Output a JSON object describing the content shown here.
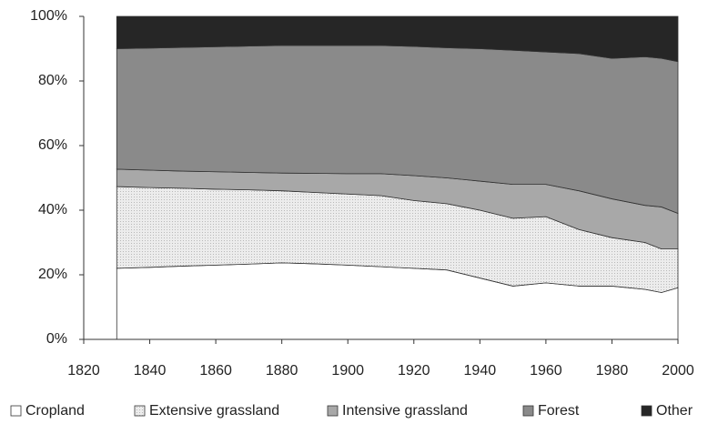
{
  "chart_data": {
    "type": "stacked-area",
    "x": [
      1830,
      1840,
      1850,
      1860,
      1870,
      1880,
      1890,
      1900,
      1910,
      1920,
      1930,
      1940,
      1950,
      1960,
      1970,
      1980,
      1990,
      1995,
      2000
    ],
    "series": [
      {
        "name": "Cropland",
        "color": "#ffffff",
        "values": [
          22,
          22.3,
          22.7,
          23,
          23.3,
          23.7,
          23.4,
          23,
          22.5,
          22,
          21.5,
          19,
          16.5,
          17.5,
          16.5,
          16.5,
          15.5,
          14.5,
          16
        ]
      },
      {
        "name": "Extensive grassland",
        "color": "#e4e4e4",
        "values": [
          25.3,
          24.7,
          24.1,
          23.5,
          23,
          22.3,
          22.1,
          22,
          22,
          21,
          20.5,
          21,
          21,
          20.5,
          17.5,
          15,
          14.5,
          13.5,
          12
        ]
      },
      {
        "name": "Intensive grassland",
        "color": "#a8a8a8",
        "values": [
          5.4,
          5.4,
          5.3,
          5.4,
          5.4,
          5.5,
          5.9,
          6.3,
          6.8,
          7.7,
          8,
          9,
          10.5,
          10,
          12,
          12,
          11.5,
          13,
          11
        ]
      },
      {
        "name": "Forest",
        "color": "#8a8a8a",
        "values": [
          37.3,
          37.8,
          38.3,
          38.7,
          39.1,
          39.5,
          39.6,
          39.7,
          39.7,
          40,
          40.3,
          41,
          41.5,
          41,
          42.5,
          43.5,
          46,
          46,
          47
        ]
      },
      {
        "name": "Other",
        "color": "#262626",
        "values": [
          10,
          9.8,
          9.6,
          9.4,
          9.2,
          9,
          9,
          9,
          9,
          9.3,
          9.7,
          10,
          10.5,
          11,
          11.5,
          13,
          12.5,
          13,
          14
        ]
      }
    ],
    "xlim": [
      1820,
      2000
    ],
    "xticks": [
      1820,
      1840,
      1860,
      1880,
      1900,
      1920,
      1940,
      1960,
      1980,
      2000
    ],
    "ylim": [
      0,
      100
    ],
    "yticks": [
      {
        "value": 0,
        "label": "0%"
      },
      {
        "value": 20,
        "label": "20%"
      },
      {
        "value": 40,
        "label": "40%"
      },
      {
        "value": 60,
        "label": "60%"
      },
      {
        "value": 80,
        "label": "80%"
      },
      {
        "value": 100,
        "label": "100%"
      }
    ],
    "legend": "bottom"
  }
}
